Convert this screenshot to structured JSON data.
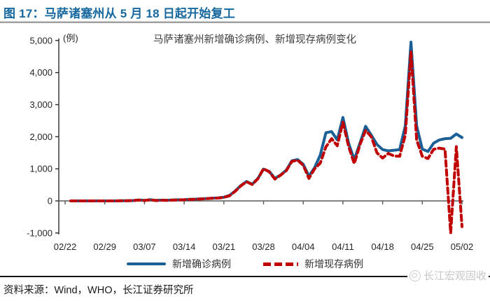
{
  "header": {
    "title": "图 17：马萨诸塞州从 5 月 18 日起开始复工"
  },
  "chart_data": {
    "type": "line",
    "title": "马萨诸塞州新增确诊病例、新增现存病例变化",
    "unit_label": "(例)",
    "ylim": [
      -1000,
      5000
    ],
    "grid": false,
    "legend_position": "bottom",
    "y_ticks": [
      5000,
      4000,
      3000,
      2000,
      1000,
      0,
      -1000
    ],
    "y_tick_labels": [
      "5,000",
      "4,000",
      "3,000",
      "2,000",
      "1,000",
      "0",
      "-1,000"
    ],
    "x_tick_labels": [
      "02/22",
      "02/29",
      "03/07",
      "03/14",
      "03/21",
      "03/28",
      "04/04",
      "04/11",
      "04/18",
      "04/25",
      "05/02"
    ],
    "x": [
      "02/23",
      "02/24",
      "02/25",
      "02/26",
      "02/27",
      "02/28",
      "02/29",
      "03/01",
      "03/02",
      "03/03",
      "03/04",
      "03/05",
      "03/06",
      "03/07",
      "03/08",
      "03/09",
      "03/10",
      "03/11",
      "03/12",
      "03/13",
      "03/14",
      "03/15",
      "03/16",
      "03/17",
      "03/18",
      "03/19",
      "03/20",
      "03/21",
      "03/22",
      "03/23",
      "03/24",
      "03/25",
      "03/26",
      "03/27",
      "03/28",
      "03/29",
      "03/30",
      "03/31",
      "04/01",
      "04/02",
      "04/03",
      "04/04",
      "04/05",
      "04/06",
      "04/07",
      "04/08",
      "04/09",
      "04/10",
      "04/11",
      "04/12",
      "04/13",
      "04/14",
      "04/15",
      "04/16",
      "04/17",
      "04/18",
      "04/19",
      "04/20",
      "04/21",
      "04/22",
      "04/23",
      "04/24",
      "04/25",
      "04/26",
      "04/27",
      "04/28",
      "04/29",
      "04/30",
      "05/01",
      "05/02"
    ],
    "series": [
      {
        "name": "新增确诊病例",
        "style": "solid",
        "color": "#1A5F96",
        "values": [
          0,
          0,
          0,
          0,
          0,
          0,
          0,
          0,
          0,
          5,
          5,
          10,
          30,
          15,
          40,
          15,
          25,
          20,
          30,
          35,
          40,
          50,
          55,
          65,
          75,
          85,
          95,
          115,
          170,
          310,
          480,
          605,
          520,
          700,
          990,
          920,
          700,
          810,
          955,
          1250,
          1290,
          1140,
          775,
          1035,
          1430,
          2125,
          2160,
          1905,
          2600,
          1800,
          1285,
          1800,
          2325,
          2050,
          1760,
          1600,
          1560,
          1580,
          1600,
          2340,
          4950,
          2340,
          1615,
          1540,
          1800,
          1900,
          1940,
          1950,
          2085,
          1975
        ]
      },
      {
        "name": "新增现存病例",
        "style": "dashed",
        "color": "#C00000",
        "values": [
          0,
          0,
          0,
          0,
          0,
          0,
          0,
          0,
          0,
          5,
          5,
          10,
          25,
          10,
          35,
          10,
          20,
          15,
          25,
          30,
          35,
          45,
          50,
          60,
          70,
          80,
          90,
          110,
          160,
          300,
          470,
          595,
          510,
          690,
          1005,
          905,
          680,
          800,
          940,
          1230,
          1270,
          1110,
          700,
          1000,
          1175,
          1685,
          1940,
          1720,
          2450,
          1700,
          1160,
          1750,
          2195,
          2000,
          1500,
          1335,
          1480,
          1400,
          1390,
          2050,
          4650,
          1900,
          1390,
          1320,
          1610,
          1645,
          1615,
          -1000,
          1690,
          -800
        ]
      }
    ]
  },
  "footer": {
    "source": "资料来源：Wind，WHO，长江证券研究所",
    "watermark": "长江宏观固收"
  }
}
